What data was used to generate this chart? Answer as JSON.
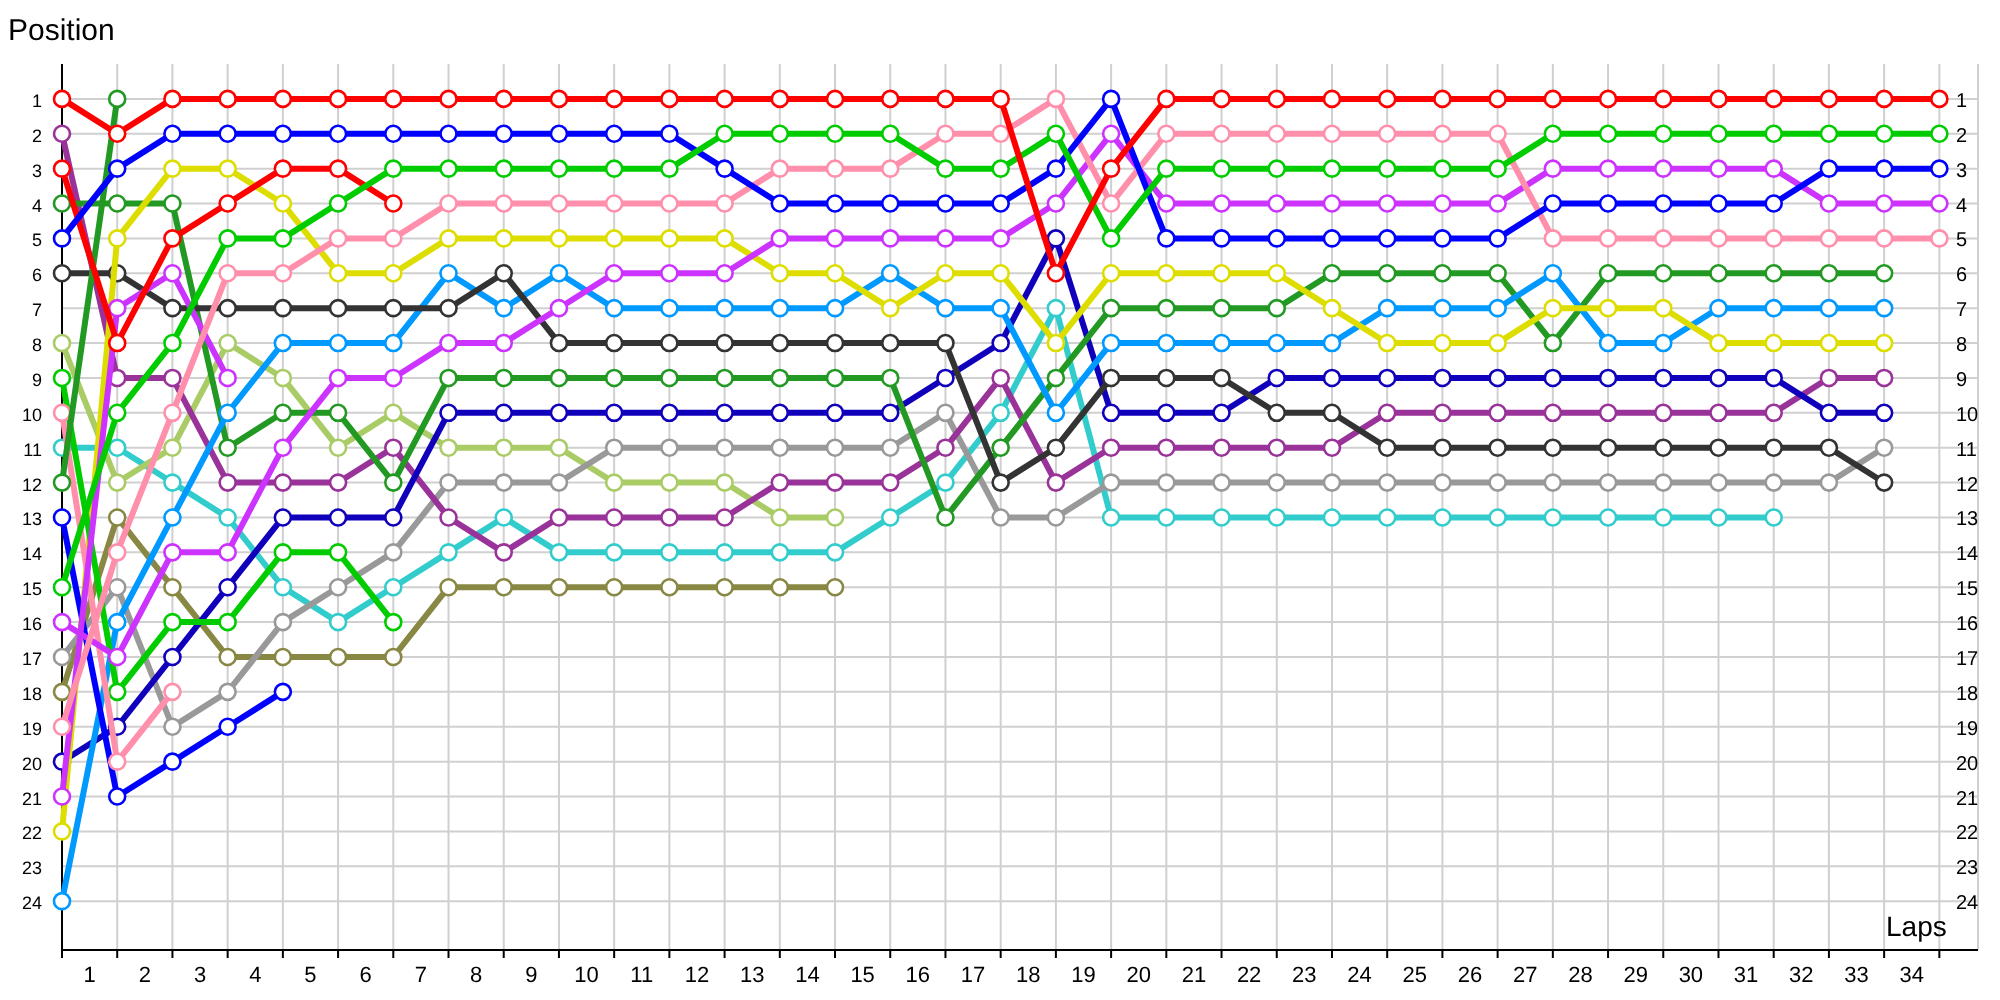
{
  "chart_data": {
    "type": "line",
    "xlabel": "Laps",
    "ylabel": "Position",
    "marker": "circle",
    "line_style": "solid",
    "grid": true,
    "x": [
      0,
      1,
      2,
      3,
      4,
      5,
      6,
      7,
      8,
      9,
      10,
      11,
      12,
      13,
      14,
      15,
      16,
      17,
      18,
      19,
      20,
      21,
      22,
      23,
      24,
      25,
      26,
      27,
      28,
      29,
      30,
      31,
      32,
      33,
      34
    ],
    "xlim": [
      0,
      34.7
    ],
    "xticks": [
      {
        "value": 0,
        "label": null
      },
      {
        "value": 0.5,
        "label": "1"
      },
      {
        "value": 1,
        "label": null
      },
      {
        "value": 1.5,
        "label": "2"
      },
      {
        "value": 2,
        "label": null
      },
      {
        "value": 2.5,
        "label": "3"
      },
      {
        "value": 3,
        "label": null
      },
      {
        "value": 3.5,
        "label": "4"
      },
      {
        "value": 4,
        "label": null
      },
      {
        "value": 4.5,
        "label": "5"
      },
      {
        "value": 5,
        "label": null
      },
      {
        "value": 5.5,
        "label": "6"
      },
      {
        "value": 6,
        "label": null
      },
      {
        "value": 6.5,
        "label": "7"
      },
      {
        "value": 7,
        "label": null
      },
      {
        "value": 7.5,
        "label": "8"
      },
      {
        "value": 8,
        "label": null
      },
      {
        "value": 8.5,
        "label": "9"
      },
      {
        "value": 9,
        "label": null
      },
      {
        "value": 9.5,
        "label": "10"
      },
      {
        "value": 10,
        "label": null
      },
      {
        "value": 10.5,
        "label": "11"
      },
      {
        "value": 11,
        "label": null
      },
      {
        "value": 11.5,
        "label": "12"
      },
      {
        "value": 12,
        "label": null
      },
      {
        "value": 12.5,
        "label": "13"
      },
      {
        "value": 13,
        "label": null
      },
      {
        "value": 13.5,
        "label": "14"
      },
      {
        "value": 14,
        "label": null
      },
      {
        "value": 14.5,
        "label": "15"
      },
      {
        "value": 15,
        "label": null
      },
      {
        "value": 15.5,
        "label": "16"
      },
      {
        "value": 16,
        "label": null
      },
      {
        "value": 16.5,
        "label": "17"
      },
      {
        "value": 17,
        "label": null
      },
      {
        "value": 17.5,
        "label": "18"
      },
      {
        "value": 18,
        "label": null
      },
      {
        "value": 18.5,
        "label": "19"
      },
      {
        "value": 19,
        "label": null
      },
      {
        "value": 19.5,
        "label": "20"
      },
      {
        "value": 20,
        "label": null
      },
      {
        "value": 20.5,
        "label": "21"
      },
      {
        "value": 21,
        "label": null
      },
      {
        "value": 21.5,
        "label": "22"
      },
      {
        "value": 22,
        "label": null
      },
      {
        "value": 22.5,
        "label": "23"
      },
      {
        "value": 23,
        "label": null
      },
      {
        "value": 23.5,
        "label": "24"
      },
      {
        "value": 24,
        "label": null
      },
      {
        "value": 24.5,
        "label": "25"
      },
      {
        "value": 25,
        "label": null
      },
      {
        "value": 25.5,
        "label": "26"
      },
      {
        "value": 26,
        "label": null
      },
      {
        "value": 26.5,
        "label": "27"
      },
      {
        "value": 27,
        "label": null
      },
      {
        "value": 27.5,
        "label": "28"
      },
      {
        "value": 28,
        "label": null
      },
      {
        "value": 28.5,
        "label": "29"
      },
      {
        "value": 29,
        "label": null
      },
      {
        "value": 29.5,
        "label": "30"
      },
      {
        "value": 30,
        "label": null
      },
      {
        "value": 30.5,
        "label": "31"
      },
      {
        "value": 31,
        "label": null
      },
      {
        "value": 31.5,
        "label": "32"
      },
      {
        "value": 32,
        "label": null
      },
      {
        "value": 32.5,
        "label": "33"
      },
      {
        "value": 33,
        "label": null
      },
      {
        "value": 33.5,
        "label": "34"
      },
      {
        "value": 34,
        "label": null
      }
    ],
    "ylim": [
      25.4,
      0
    ],
    "yticks": [
      1,
      2,
      3,
      4,
      5,
      6,
      7,
      8,
      9,
      10,
      11,
      12,
      13,
      14,
      15,
      16,
      17,
      18,
      19,
      20,
      21,
      22,
      23,
      24
    ],
    "y2lim": [
      25.4,
      0
    ],
    "y2ticks": [
      1,
      2,
      3,
      4,
      5,
      6,
      7,
      8,
      9,
      10,
      11,
      12,
      13,
      14,
      15,
      16,
      17,
      18,
      19,
      20,
      21,
      22,
      23,
      24
    ],
    "series": [
      {
        "color": "#888844",
        "values": [
          18,
          13,
          15,
          17,
          17,
          17,
          17,
          15,
          15,
          15,
          15,
          15,
          15,
          15,
          15,
          null,
          null,
          null,
          null,
          null,
          null,
          null,
          null,
          null,
          null,
          null,
          null,
          null,
          null,
          null,
          null,
          null,
          null,
          null,
          null
        ]
      },
      {
        "color": "#33cccc",
        "values": [
          11,
          11,
          12,
          13,
          15,
          16,
          15,
          14,
          13,
          14,
          14,
          14,
          14,
          14,
          14,
          13,
          12,
          10,
          7,
          13,
          13,
          13,
          13,
          13,
          13,
          13,
          13,
          13,
          13,
          13,
          13,
          13,
          null,
          null,
          null
        ]
      },
      {
        "color": "#aacc66",
        "values": [
          8,
          12,
          11,
          8,
          9,
          11,
          10,
          11,
          11,
          11,
          12,
          12,
          12,
          13,
          13,
          null,
          null,
          null,
          null,
          null,
          null,
          null,
          null,
          null,
          null,
          null,
          null,
          null,
          null,
          null,
          null,
          null,
          null,
          null,
          null
        ]
      },
      {
        "color": "#999999",
        "values": [
          17,
          15,
          19,
          18,
          16,
          15,
          14,
          12,
          12,
          12,
          11,
          11,
          11,
          11,
          11,
          11,
          10,
          13,
          13,
          12,
          12,
          12,
          12,
          12,
          12,
          12,
          12,
          12,
          12,
          12,
          12,
          12,
          12,
          11,
          null
        ]
      },
      {
        "color": "#993399",
        "values": [
          2,
          9,
          9,
          12,
          12,
          12,
          11,
          13,
          14,
          13,
          13,
          13,
          13,
          12,
          12,
          12,
          11,
          9,
          12,
          11,
          11,
          11,
          11,
          11,
          10,
          10,
          10,
          10,
          10,
          10,
          10,
          10,
          9,
          9,
          null
        ]
      },
      {
        "color": "#1100bb",
        "values": [
          20,
          19,
          17,
          15,
          13,
          13,
          13,
          10,
          10,
          10,
          10,
          10,
          10,
          10,
          10,
          10,
          9,
          8,
          5,
          10,
          10,
          10,
          9,
          9,
          9,
          9,
          9,
          9,
          9,
          9,
          9,
          9,
          10,
          10,
          null
        ]
      },
      {
        "color": "#229922",
        "values": [
          4,
          4,
          4,
          11,
          10,
          10,
          12,
          9,
          9,
          9,
          9,
          9,
          9,
          9,
          9,
          9,
          13,
          11,
          9,
          7,
          7,
          7,
          7,
          6,
          6,
          6,
          6,
          8,
          6,
          6,
          6,
          6,
          6,
          6,
          null
        ]
      },
      {
        "color": "#0099ff",
        "values": [
          24,
          16,
          13,
          10,
          8,
          8,
          8,
          6,
          7,
          6,
          7,
          7,
          7,
          7,
          7,
          6,
          7,
          7,
          10,
          8,
          8,
          8,
          8,
          8,
          7,
          7,
          7,
          6,
          8,
          8,
          7,
          7,
          7,
          7,
          null
        ]
      },
      {
        "color": "#333333",
        "values": [
          6,
          6,
          7,
          7,
          7,
          7,
          7,
          7,
          6,
          8,
          8,
          8,
          8,
          8,
          8,
          8,
          8,
          12,
          11,
          9,
          9,
          9,
          10,
          10,
          11,
          11,
          11,
          11,
          11,
          11,
          11,
          11,
          11,
          12,
          null
        ]
      },
      {
        "color": "#dddd00",
        "values": [
          22,
          5,
          3,
          3,
          4,
          6,
          6,
          5,
          5,
          5,
          5,
          5,
          5,
          6,
          6,
          7,
          6,
          6,
          8,
          6,
          6,
          6,
          6,
          7,
          8,
          8,
          8,
          7,
          7,
          7,
          8,
          8,
          8,
          8,
          null
        ]
      },
      {
        "color": "#0000ff",
        "values": [
          13,
          21,
          20,
          19,
          18,
          null,
          null,
          null,
          null,
          null,
          null,
          null,
          null,
          null,
          null,
          null,
          null,
          null,
          null,
          null,
          null,
          null,
          null,
          null,
          null,
          null,
          null,
          null,
          null,
          null,
          null,
          null,
          null,
          null,
          null
        ]
      },
      {
        "color": "#00cc00",
        "values": [
          9,
          18,
          16,
          16,
          14,
          14,
          16,
          null,
          null,
          null,
          null,
          null,
          null,
          null,
          null,
          null,
          null,
          null,
          null,
          null,
          null,
          null,
          null,
          null,
          null,
          null,
          null,
          null,
          null,
          null,
          null,
          null,
          null,
          null,
          null
        ]
      },
      {
        "color": "#ff8fab",
        "values": [
          10,
          20,
          18,
          null,
          null,
          null,
          null,
          null,
          null,
          null,
          null,
          null,
          null,
          null,
          null,
          null,
          null,
          null,
          null,
          null,
          null,
          null,
          null,
          null,
          null,
          null,
          null,
          null,
          null,
          null,
          null,
          null,
          null,
          null,
          null
        ]
      },
      {
        "color": "#cc33ff",
        "values": [
          21,
          7,
          6,
          9,
          null,
          null,
          null,
          null,
          null,
          null,
          null,
          null,
          null,
          null,
          null,
          null,
          null,
          null,
          null,
          null,
          null,
          null,
          null,
          null,
          null,
          null,
          null,
          null,
          null,
          null,
          null,
          null,
          null,
          null,
          null
        ]
      },
      {
        "color": "#229922",
        "values": [
          12,
          1,
          null,
          null,
          null,
          null,
          null,
          null,
          null,
          null,
          null,
          null,
          null,
          null,
          null,
          null,
          null,
          null,
          null,
          null,
          null,
          null,
          null,
          null,
          null,
          null,
          null,
          null,
          null,
          null,
          null,
          null,
          null,
          null,
          null
        ]
      },
      {
        "color": "#ff0000",
        "values": [
          3,
          8,
          5,
          4,
          3,
          3,
          4,
          null,
          null,
          null,
          null,
          null,
          null,
          null,
          null,
          null,
          null,
          null,
          null,
          null,
          null,
          null,
          null,
          null,
          null,
          null,
          null,
          null,
          null,
          null,
          null,
          null,
          null,
          null,
          null
        ]
      },
      {
        "color": "#cc33ff",
        "values": [
          16,
          17,
          14,
          14,
          11,
          9,
          9,
          8,
          8,
          7,
          6,
          6,
          6,
          5,
          5,
          5,
          5,
          5,
          4,
          2,
          4,
          4,
          4,
          4,
          4,
          4,
          4,
          3,
          3,
          3,
          3,
          3,
          4,
          4,
          4
        ]
      },
      {
        "color": "#ff8fab",
        "values": [
          19,
          14,
          10,
          6,
          6,
          5,
          5,
          4,
          4,
          4,
          4,
          4,
          4,
          3,
          3,
          3,
          2,
          2,
          1,
          4,
          2,
          2,
          2,
          2,
          2,
          2,
          2,
          5,
          5,
          5,
          5,
          5,
          5,
          5,
          5
        ]
      },
      {
        "color": "#0000ff",
        "values": [
          5,
          3,
          2,
          2,
          2,
          2,
          2,
          2,
          2,
          2,
          2,
          2,
          3,
          4,
          4,
          4,
          4,
          4,
          3,
          1,
          5,
          5,
          5,
          5,
          5,
          5,
          5,
          4,
          4,
          4,
          4,
          4,
          3,
          3,
          3
        ]
      },
      {
        "color": "#00cc00",
        "values": [
          15,
          10,
          8,
          5,
          5,
          4,
          3,
          3,
          3,
          3,
          3,
          3,
          2,
          2,
          2,
          2,
          3,
          3,
          2,
          5,
          3,
          3,
          3,
          3,
          3,
          3,
          3,
          2,
          2,
          2,
          2,
          2,
          2,
          2,
          2
        ]
      },
      {
        "color": "#ff0000",
        "values": [
          1,
          2,
          1,
          1,
          1,
          1,
          1,
          1,
          1,
          1,
          1,
          1,
          1,
          1,
          1,
          1,
          1,
          1,
          6,
          3,
          1,
          1,
          1,
          1,
          1,
          1,
          1,
          1,
          1,
          1,
          1,
          1,
          1,
          1,
          1
        ]
      }
    ]
  }
}
